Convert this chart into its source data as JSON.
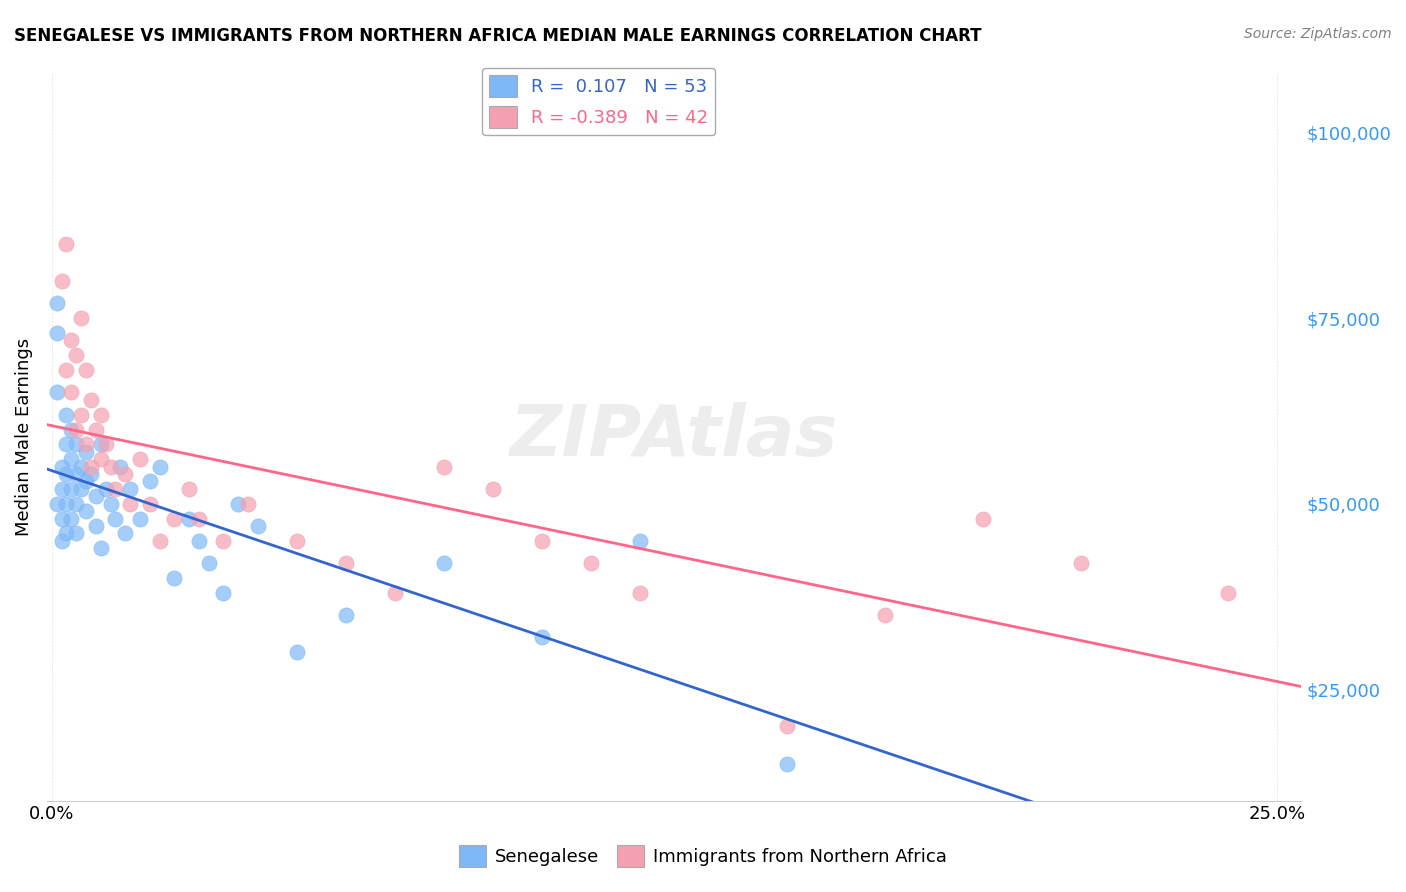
{
  "title": "SENEGALESE VS IMMIGRANTS FROM NORTHERN AFRICA MEDIAN MALE EARNINGS CORRELATION CHART",
  "source": "Source: ZipAtlas.com",
  "ylabel": "Median Male Earnings",
  "r_senegalese": 0.107,
  "n_senegalese": 53,
  "r_northern_africa": -0.389,
  "n_northern_africa": 42,
  "y_ticks": [
    25000,
    50000,
    75000,
    100000
  ],
  "y_labels": [
    "$25,000",
    "$50,000",
    "$75,000",
    "$100,000"
  ],
  "y_min": 10000,
  "y_max": 108000,
  "x_min": -0.001,
  "x_max": 0.255,
  "color_senegalese": "#7EB8F7",
  "color_northern_africa": "#F4A0B0",
  "line_color_senegalese": "#3366CC",
  "line_color_northern_africa": "#FF6688",
  "background_color": "#FFFFFF",
  "watermark": "ZIPAtlas",
  "senegalese_x": [
    0.001,
    0.001,
    0.001,
    0.001,
    0.002,
    0.002,
    0.002,
    0.002,
    0.003,
    0.003,
    0.003,
    0.003,
    0.003,
    0.004,
    0.004,
    0.004,
    0.004,
    0.005,
    0.005,
    0.005,
    0.005,
    0.006,
    0.006,
    0.007,
    0.007,
    0.007,
    0.008,
    0.009,
    0.009,
    0.01,
    0.01,
    0.011,
    0.012,
    0.013,
    0.014,
    0.015,
    0.016,
    0.018,
    0.02,
    0.022,
    0.025,
    0.028,
    0.03,
    0.032,
    0.035,
    0.038,
    0.042,
    0.05,
    0.06,
    0.08,
    0.1,
    0.12,
    0.15
  ],
  "senegalese_y": [
    77000,
    73000,
    65000,
    50000,
    55000,
    52000,
    48000,
    45000,
    62000,
    58000,
    54000,
    50000,
    46000,
    60000,
    56000,
    52000,
    48000,
    58000,
    54000,
    50000,
    46000,
    55000,
    52000,
    57000,
    53000,
    49000,
    54000,
    51000,
    47000,
    58000,
    44000,
    52000,
    50000,
    48000,
    55000,
    46000,
    52000,
    48000,
    53000,
    55000,
    40000,
    48000,
    45000,
    42000,
    38000,
    50000,
    47000,
    30000,
    35000,
    42000,
    32000,
    45000,
    15000
  ],
  "northern_africa_x": [
    0.002,
    0.003,
    0.003,
    0.004,
    0.004,
    0.005,
    0.005,
    0.006,
    0.006,
    0.007,
    0.007,
    0.008,
    0.008,
    0.009,
    0.01,
    0.01,
    0.011,
    0.012,
    0.013,
    0.015,
    0.016,
    0.018,
    0.02,
    0.022,
    0.025,
    0.028,
    0.03,
    0.035,
    0.04,
    0.05,
    0.06,
    0.07,
    0.08,
    0.09,
    0.1,
    0.11,
    0.12,
    0.15,
    0.17,
    0.19,
    0.21,
    0.24
  ],
  "northern_africa_y": [
    80000,
    85000,
    68000,
    72000,
    65000,
    70000,
    60000,
    75000,
    62000,
    68000,
    58000,
    64000,
    55000,
    60000,
    62000,
    56000,
    58000,
    55000,
    52000,
    54000,
    50000,
    56000,
    50000,
    45000,
    48000,
    52000,
    48000,
    45000,
    50000,
    45000,
    42000,
    38000,
    55000,
    52000,
    45000,
    42000,
    38000,
    20000,
    35000,
    48000,
    42000,
    38000
  ]
}
